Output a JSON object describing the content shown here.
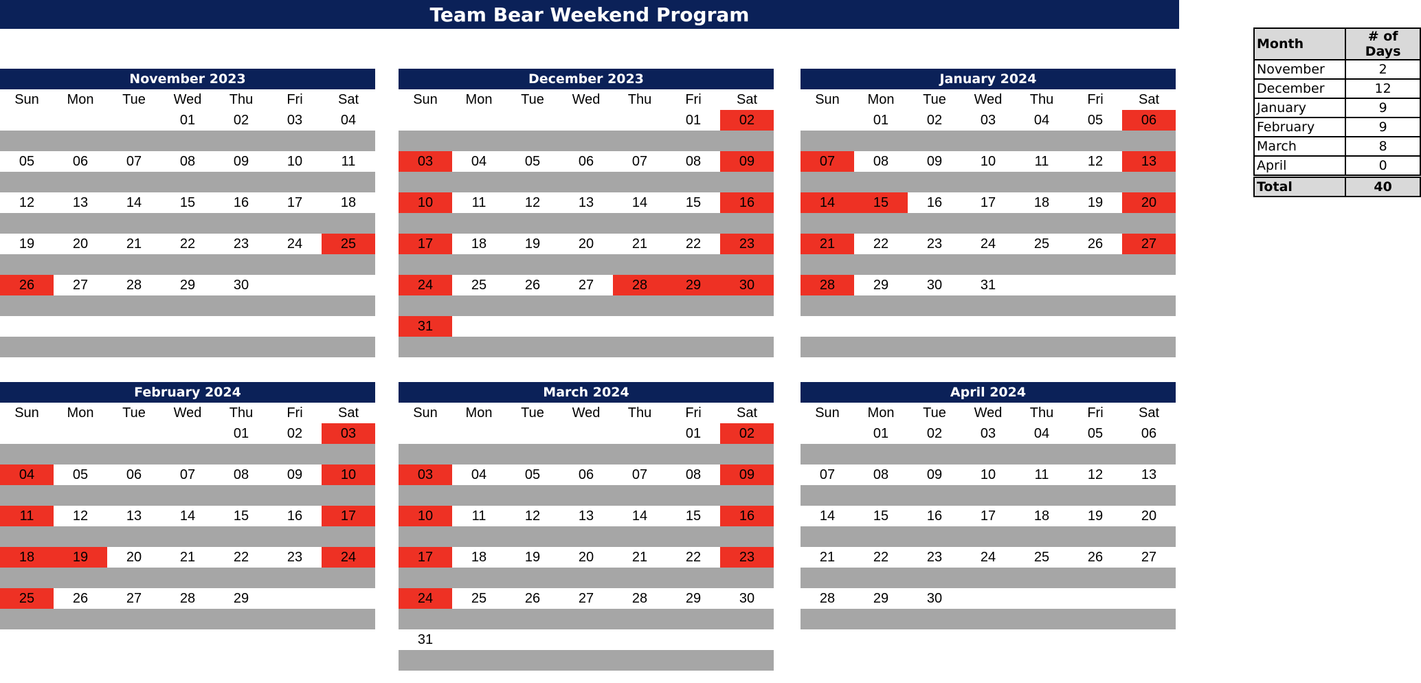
{
  "title": "Team Bear Weekend Program",
  "weekday_labels": [
    "Sun",
    "Mon",
    "Tue",
    "Wed",
    "Thu",
    "Fri",
    "Sat"
  ],
  "colors": {
    "header": "#0b2158",
    "highlight": "#ee3124",
    "separator": "#a6a6a6"
  },
  "months": [
    {
      "title": "November 2023",
      "weeks": [
        [
          "",
          "",
          "",
          "01",
          "02",
          "03",
          "04"
        ],
        [
          "05",
          "06",
          "07",
          "08",
          "09",
          "10",
          "11"
        ],
        [
          "12",
          "13",
          "14",
          "15",
          "16",
          "17",
          "18"
        ],
        [
          "19",
          "20",
          "21",
          "22",
          "23",
          "24",
          "25"
        ],
        [
          "26",
          "27",
          "28",
          "29",
          "30",
          "",
          ""
        ],
        [
          "",
          "",
          "",
          "",
          "",
          "",
          ""
        ]
      ],
      "highlighted": [
        "25",
        "26"
      ]
    },
    {
      "title": "December 2023",
      "weeks": [
        [
          "",
          "",
          "",
          "",
          "",
          "01",
          "02"
        ],
        [
          "03",
          "04",
          "05",
          "06",
          "07",
          "08",
          "09"
        ],
        [
          "10",
          "11",
          "12",
          "13",
          "14",
          "15",
          "16"
        ],
        [
          "17",
          "18",
          "19",
          "20",
          "21",
          "22",
          "23"
        ],
        [
          "24",
          "25",
          "26",
          "27",
          "28",
          "29",
          "30"
        ],
        [
          "31",
          "",
          "",
          "",
          "",
          "",
          ""
        ]
      ],
      "highlighted": [
        "02",
        "03",
        "09",
        "10",
        "16",
        "17",
        "23",
        "24",
        "28",
        "29",
        "30",
        "31"
      ]
    },
    {
      "title": "January 2024",
      "weeks": [
        [
          "",
          "01",
          "02",
          "03",
          "04",
          "05",
          "06"
        ],
        [
          "07",
          "08",
          "09",
          "10",
          "11",
          "12",
          "13"
        ],
        [
          "14",
          "15",
          "16",
          "17",
          "18",
          "19",
          "20"
        ],
        [
          "21",
          "22",
          "23",
          "24",
          "25",
          "26",
          "27"
        ],
        [
          "28",
          "29",
          "30",
          "31",
          "",
          "",
          ""
        ],
        [
          "",
          "",
          "",
          "",
          "",
          "",
          ""
        ]
      ],
      "highlighted": [
        "06",
        "07",
        "13",
        "14",
        "15",
        "20",
        "21",
        "27",
        "28"
      ]
    },
    {
      "title": "February 2024",
      "weeks": [
        [
          "",
          "",
          "",
          "",
          "01",
          "02",
          "03"
        ],
        [
          "04",
          "05",
          "06",
          "07",
          "08",
          "09",
          "10"
        ],
        [
          "11",
          "12",
          "13",
          "14",
          "15",
          "16",
          "17"
        ],
        [
          "18",
          "19",
          "20",
          "21",
          "22",
          "23",
          "24"
        ],
        [
          "25",
          "26",
          "27",
          "28",
          "29",
          "",
          ""
        ]
      ],
      "highlighted": [
        "03",
        "04",
        "10",
        "11",
        "17",
        "18",
        "19",
        "24",
        "25"
      ]
    },
    {
      "title": "March 2024",
      "weeks": [
        [
          "",
          "",
          "",
          "",
          "",
          "01",
          "02"
        ],
        [
          "03",
          "04",
          "05",
          "06",
          "07",
          "08",
          "09"
        ],
        [
          "10",
          "11",
          "12",
          "13",
          "14",
          "15",
          "16"
        ],
        [
          "17",
          "18",
          "19",
          "20",
          "21",
          "22",
          "23"
        ],
        [
          "24",
          "25",
          "26",
          "27",
          "28",
          "29",
          "30"
        ],
        [
          "31",
          "",
          "",
          "",
          "",
          "",
          ""
        ]
      ],
      "highlighted": [
        "02",
        "03",
        "09",
        "10",
        "16",
        "17",
        "23",
        "24"
      ]
    },
    {
      "title": "April 2024",
      "weeks": [
        [
          "",
          "01",
          "02",
          "03",
          "04",
          "05",
          "06"
        ],
        [
          "07",
          "08",
          "09",
          "10",
          "11",
          "12",
          "13"
        ],
        [
          "14",
          "15",
          "16",
          "17",
          "18",
          "19",
          "20"
        ],
        [
          "21",
          "22",
          "23",
          "24",
          "25",
          "26",
          "27"
        ],
        [
          "28",
          "29",
          "30",
          "",
          "",
          "",
          ""
        ]
      ],
      "highlighted": []
    }
  ],
  "summary": {
    "headers": [
      "Month",
      "# of Days"
    ],
    "rows": [
      {
        "month": "November",
        "days": "2"
      },
      {
        "month": "December",
        "days": "12"
      },
      {
        "month": "January",
        "days": "9"
      },
      {
        "month": "February",
        "days": "9"
      },
      {
        "month": "March",
        "days": "8"
      },
      {
        "month": "April",
        "days": "0"
      }
    ],
    "total_label": "Total",
    "total_value": "40"
  }
}
